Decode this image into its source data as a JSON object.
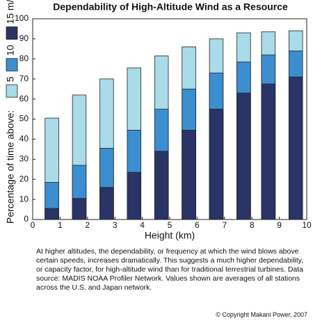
{
  "title": "Dependability of High-Altitude Wind as a Resource",
  "chart_data": {
    "type": "bar",
    "x_label": "Height (km)",
    "y_label": "Percentage of time above:",
    "x": [
      0.7,
      1.7,
      2.7,
      3.7,
      4.7,
      5.7,
      6.7,
      7.7,
      8.6,
      9.6
    ],
    "series": [
      {
        "name": "5",
        "color": "#a9dbe9",
        "values": [
          50.5,
          62,
          70,
          75.5,
          81.5,
          86,
          90,
          93,
          93.5,
          94
        ]
      },
      {
        "name": "10",
        "color": "#3b8fd0",
        "values": [
          18.5,
          27,
          35.5,
          44.5,
          55,
          65,
          73,
          78.5,
          82,
          84
        ]
      },
      {
        "name": "15 m/s",
        "color": "#2b3467",
        "values": [
          5.5,
          10.5,
          16,
          23.5,
          34,
          44.5,
          55,
          63,
          67.5,
          71
        ]
      }
    ],
    "xlim": [
      0,
      10
    ],
    "xticks": [
      0,
      1,
      2,
      3,
      4,
      5,
      6,
      7,
      8,
      9,
      10
    ],
    "ylim": [
      0,
      100
    ],
    "yticks": [
      0,
      10,
      20,
      30,
      40,
      50,
      60,
      70,
      80,
      90,
      100
    ],
    "grid": false
  },
  "caption": "At higher altitudes, the dependability, or frequency at which the wind blows above certain speeds, increases dramatically. This suggests a much higher dependability, or capacity factor, for high-altitude wind than for traditional terrestrial turbines. Data source: MADIS NOAA Profiler Network. Values shown are averages of all stations across the U.S. and Japan network.",
  "copyright": "© Copyright Makani Power, 2007"
}
